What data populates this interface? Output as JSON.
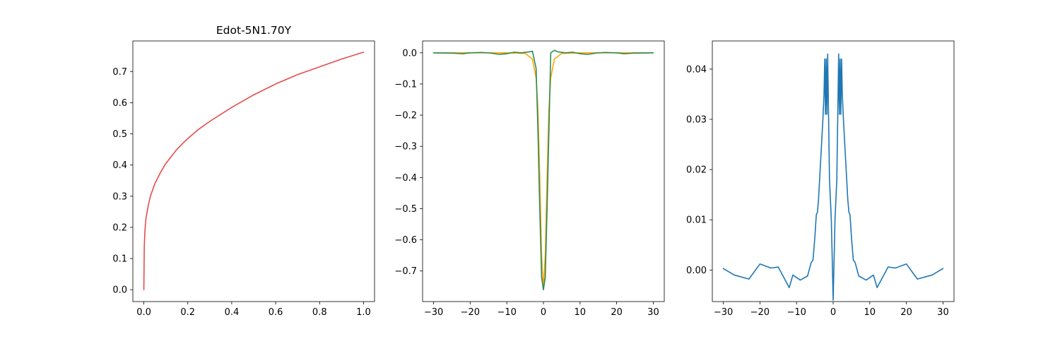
{
  "chart_data": [
    {
      "type": "line",
      "title": "Edot-5N1.70Y",
      "xlabel": "",
      "ylabel": "",
      "xlim": [
        -0.05,
        1.05
      ],
      "ylim": [
        -0.038,
        0.798
      ],
      "xticks": [
        0.0,
        0.2,
        0.4,
        0.6,
        0.8,
        1.0
      ],
      "xtick_labels": [
        "0.0",
        "0.2",
        "0.4",
        "0.6",
        "0.8",
        "1.0"
      ],
      "yticks": [
        0.0,
        0.1,
        0.2,
        0.3,
        0.4,
        0.5,
        0.6,
        0.7
      ],
      "ytick_labels": [
        "0.0",
        "0.1",
        "0.2",
        "0.3",
        "0.4",
        "0.5",
        "0.6",
        "0.7"
      ],
      "grid": false,
      "series": [
        {
          "color": "#e64c4c",
          "x": [
            0.0,
            0.002,
            0.005,
            0.01,
            0.02,
            0.03,
            0.05,
            0.075,
            0.1,
            0.15,
            0.2,
            0.25,
            0.3,
            0.4,
            0.5,
            0.6,
            0.7,
            0.8,
            0.9,
            1.0
          ],
          "y": [
            0.0,
            0.14,
            0.19,
            0.23,
            0.27,
            0.3,
            0.34,
            0.375,
            0.405,
            0.45,
            0.485,
            0.515,
            0.54,
            0.585,
            0.625,
            0.66,
            0.69,
            0.715,
            0.74,
            0.762
          ]
        }
      ]
    },
    {
      "type": "line",
      "title": "",
      "xlabel": "",
      "ylabel": "",
      "xlim": [
        -33,
        33
      ],
      "ylim": [
        -0.798,
        0.038
      ],
      "xticks": [
        -30,
        -20,
        -10,
        0,
        10,
        20,
        30
      ],
      "xtick_labels": [
        "−30",
        "−20",
        "−10",
        "0",
        "10",
        "20",
        "30"
      ],
      "yticks": [
        0.0,
        -0.1,
        -0.2,
        -0.3,
        -0.4,
        -0.5,
        -0.6,
        -0.7
      ],
      "ytick_labels": [
        "0.0",
        "−0.1",
        "−0.2",
        "−0.3",
        "−0.4",
        "−0.5",
        "−0.6",
        "−0.7"
      ],
      "grid": false,
      "series": [
        {
          "color": "#ffa500",
          "x": [
            -30,
            -20,
            -10,
            -5,
            -3,
            -2,
            -1.5,
            -1,
            -0.5,
            0,
            0.5,
            1,
            1.5,
            2,
            3,
            5,
            10,
            20,
            30
          ],
          "y": [
            0.0,
            0.0,
            0.0,
            -0.002,
            -0.02,
            -0.08,
            -0.18,
            -0.4,
            -0.65,
            -0.76,
            -0.65,
            -0.4,
            -0.18,
            -0.08,
            -0.02,
            -0.002,
            0.0,
            0.0,
            0.0
          ]
        },
        {
          "color": "#2e8b57",
          "x": [
            -30,
            -25,
            -22,
            -20,
            -17,
            -15,
            -12,
            -10,
            -8,
            -6,
            -4,
            -3,
            -2,
            -1.5,
            -1,
            -0.5,
            0,
            0.5,
            1,
            1.5,
            2,
            3,
            4,
            6,
            8,
            10,
            12,
            15,
            17,
            20,
            22,
            25,
            30
          ],
          "y": [
            0.0,
            -0.001,
            -0.003,
            0.0,
            0.001,
            0.0,
            -0.005,
            -0.003,
            0.002,
            0.0,
            0.003,
            0.005,
            -0.05,
            -0.25,
            -0.5,
            -0.72,
            -0.76,
            -0.72,
            -0.5,
            -0.25,
            0.0,
            0.008,
            0.003,
            0.0,
            0.002,
            -0.003,
            -0.005,
            0.0,
            0.001,
            0.0,
            -0.003,
            -0.001,
            0.0
          ]
        }
      ]
    },
    {
      "type": "line",
      "title": "",
      "xlabel": "",
      "ylabel": "",
      "xlim": [
        -33,
        33
      ],
      "ylim": [
        -0.00628,
        0.0456
      ],
      "xticks": [
        -30,
        -20,
        -10,
        0,
        10,
        20,
        30
      ],
      "xtick_labels": [
        "−30",
        "−20",
        "−10",
        "0",
        "10",
        "20",
        "30"
      ],
      "yticks": [
        0.0,
        0.01,
        0.02,
        0.03,
        0.04
      ],
      "ytick_labels": [
        "0.00",
        "0.01",
        "0.02",
        "0.03",
        "0.04"
      ],
      "grid": false,
      "series": [
        {
          "color": "#1f77b4",
          "x": [
            -30,
            -27,
            -23,
            -20,
            -17,
            -15,
            -12,
            -11,
            -9,
            -7,
            -6,
            -5.5,
            -5,
            -4.6,
            -4.3,
            -4,
            -3.7,
            -3.4,
            -3.1,
            -2.8,
            -2.5,
            -2.3,
            -2.1,
            -1.9,
            -1.7,
            -1.5,
            -1.3,
            -1.0,
            -0.5,
            0,
            0.5,
            1.0,
            1.3,
            1.5,
            1.7,
            1.9,
            2.1,
            2.3,
            2.5,
            2.8,
            3.1,
            3.4,
            3.7,
            4,
            4.3,
            4.6,
            5,
            5.5,
            6,
            7,
            9,
            11,
            12,
            15,
            17,
            20,
            23,
            27,
            30
          ],
          "y": [
            0.0003,
            -0.001,
            -0.0018,
            0.0012,
            0.0004,
            0.0006,
            -0.0035,
            -0.001,
            -0.002,
            -0.0012,
            0.0015,
            0.002,
            0.0065,
            0.011,
            0.0115,
            0.014,
            0.018,
            0.022,
            0.026,
            0.03,
            0.035,
            0.042,
            0.031,
            0.042,
            0.031,
            0.043,
            0.033,
            0.018,
            0.01,
            -0.006,
            0.01,
            0.018,
            0.033,
            0.043,
            0.031,
            0.042,
            0.031,
            0.042,
            0.035,
            0.03,
            0.026,
            0.022,
            0.018,
            0.014,
            0.0115,
            0.011,
            0.0065,
            0.002,
            0.0015,
            -0.0012,
            -0.002,
            -0.001,
            -0.0035,
            0.0006,
            0.0004,
            0.0012,
            -0.0018,
            -0.001,
            0.0003
          ]
        }
      ]
    }
  ]
}
